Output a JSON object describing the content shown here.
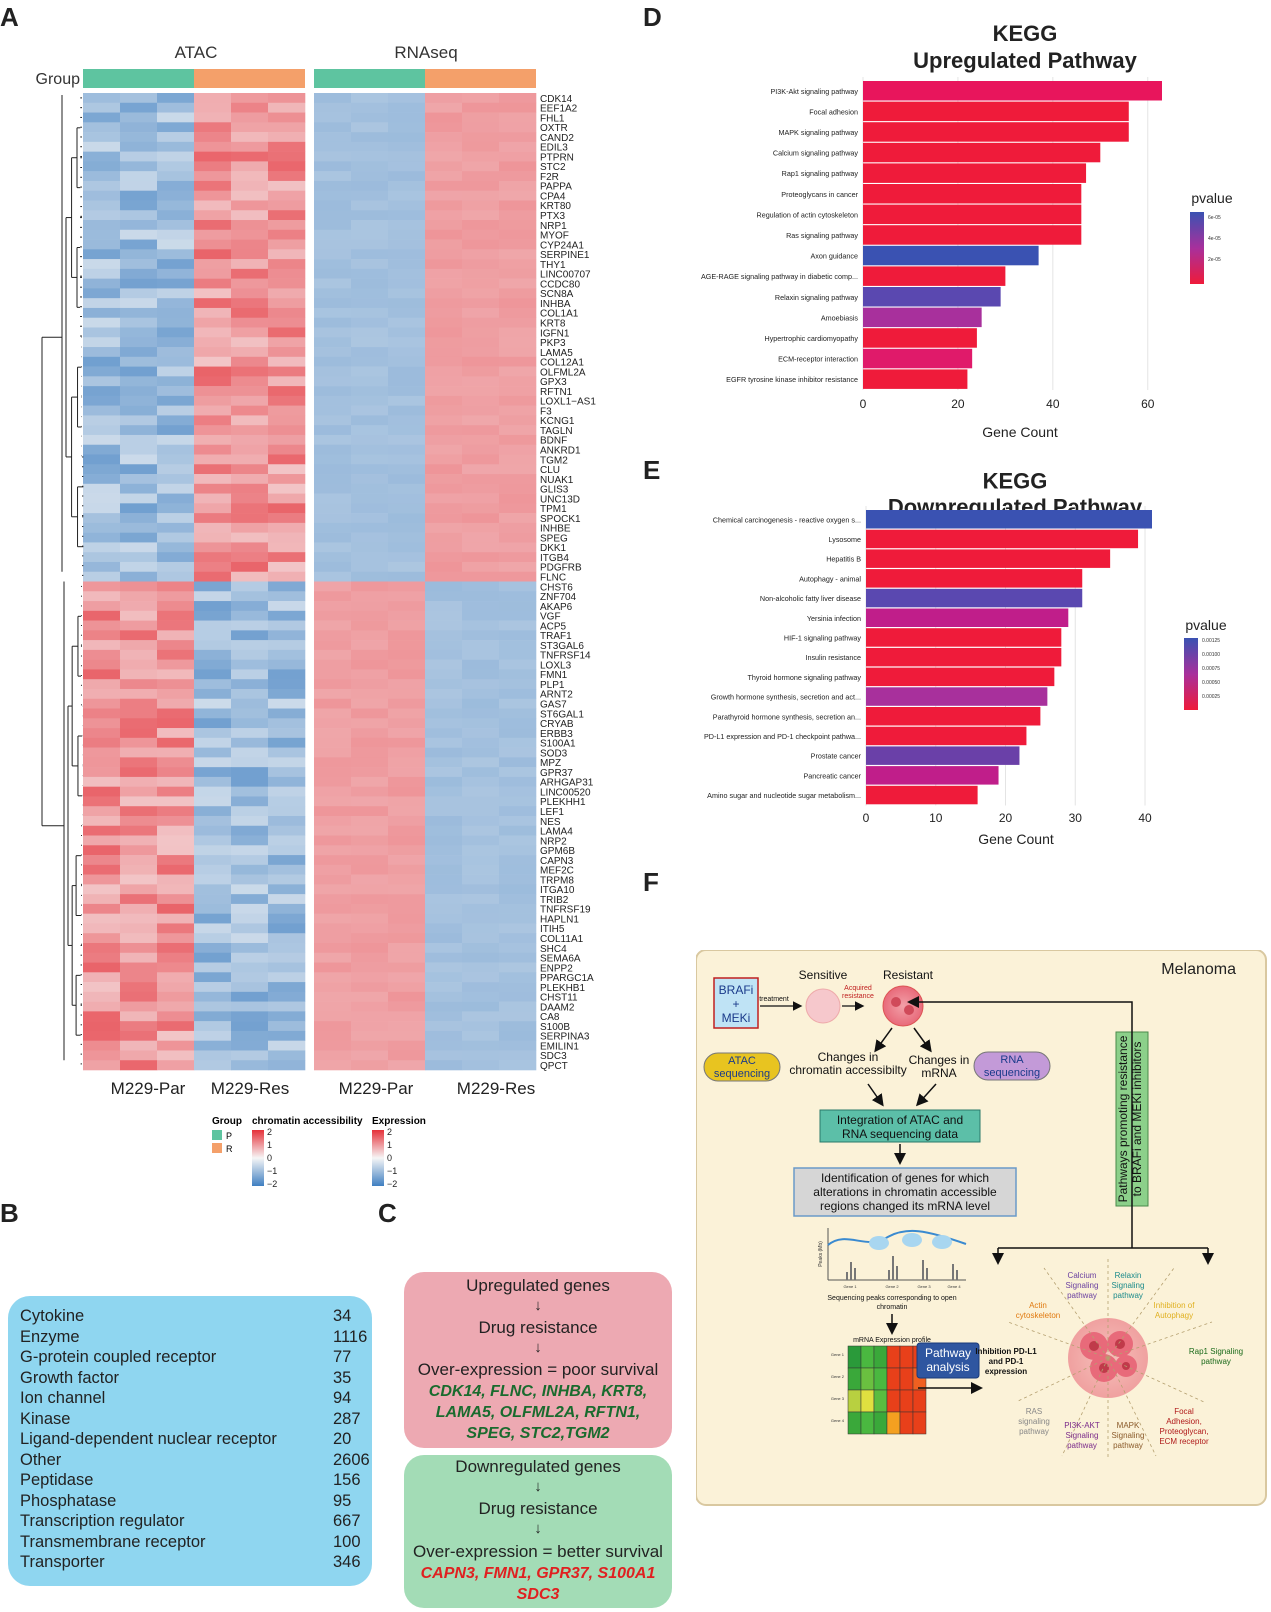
{
  "panels": {
    "a": "A",
    "b": "B",
    "c": "C",
    "d": "D",
    "e": "E",
    "f": "F"
  },
  "heatmap": {
    "atac_title": "ATAC",
    "rna_title": "RNAseq",
    "group_label": "Group",
    "x_labels": [
      "M229-Par",
      "M229-Res",
      "M229-Par",
      "M229-Res"
    ],
    "genes": [
      "CDK14",
      "EEF1A2",
      "FHL1",
      "OXTR",
      "CAND2",
      "EDIL3",
      "PTPRN",
      "STC2",
      "F2R",
      "PAPPA",
      "CPA4",
      "KRT80",
      "PTX3",
      "NRP1",
      "MYOF",
      "CYP24A1",
      "SERPINE1",
      "THY1",
      "LINC00707",
      "CCDC80",
      "SCN8A",
      "INHBA",
      "COL1A1",
      "KRT8",
      "IGFN1",
      "PKP3",
      "LAMA5",
      "COL12A1",
      "OLFML2A",
      "GPX3",
      "RFTN1",
      "LOXL1−AS1",
      "F3",
      "KCNG1",
      "TAGLN",
      "BDNF",
      "ANKRD1",
      "TGM2",
      "CLU",
      "NUAK1",
      "GLIS3",
      "UNC13D",
      "TPM1",
      "SPOCK1",
      "INHBE",
      "SPEG",
      "DKK1",
      "ITGB4",
      "PDGFRB",
      "FLNC",
      "CHST6",
      "ZNF704",
      "AKAP6",
      "VGF",
      "ACP5",
      "TRAF1",
      "ST3GAL6",
      "TNFRSF14",
      "LOXL3",
      "FMN1",
      "PLP1",
      "ARNT2",
      "GAS7",
      "ST6GAL1",
      "CRYAB",
      "ERBB3",
      "S100A1",
      "SOD3",
      "MPZ",
      "GPR37",
      "ARHGAP31",
      "LINC00520",
      "PLEKHH1",
      "LEF1",
      "NES",
      "LAMA4",
      "NRP2",
      "GPM6B",
      "CAPN3",
      "MEF2C",
      "TRPM8",
      "ITGA10",
      "TRIB2",
      "TNFRSF19",
      "HAPLN1",
      "ITIH5",
      "COL11A1",
      "SHC4",
      "SEMA6A",
      "ENPP2",
      "PPARGC1A",
      "PLEKHB1",
      "CHST11",
      "DAAM2",
      "CA8",
      "S100B",
      "SERPINA3",
      "EMILIN1",
      "SDC3",
      "QPCT"
    ],
    "legend": {
      "group_title": "Group",
      "group_items": [
        "P",
        "R"
      ],
      "atac_title": "chromatin accessibility",
      "rna_title": "Expression",
      "ticks": [
        "2",
        "1",
        "0",
        "−1",
        "−2"
      ]
    },
    "colors": {
      "group_p": "#5ec4a0",
      "group_r": "#f4a06a",
      "high": "#e5323a",
      "mid": "#f6f6f6",
      "low": "#3f7fc1"
    }
  },
  "kegg_up": {
    "title_line1": "KEGG",
    "title_line2": "Upregulated Pathway",
    "xlabel": "Gene Count",
    "legend_title": "pvalue",
    "legend_ticks": [
      "6e-05",
      "4e-05",
      "2e-05"
    ]
  },
  "kegg_down": {
    "title_line1": "KEGG",
    "title_line2": "Downregulated Pathway",
    "xlabel": "Gene Count",
    "legend_title": "pvalue",
    "legend_ticks": [
      "0.00125",
      "0.00100",
      "0.00075",
      "0.00050",
      "0.00025"
    ]
  },
  "chart_data": [
    {
      "type": "bar",
      "title": "KEGG Upregulated Pathway",
      "xlabel": "Gene Count",
      "ylabel": "",
      "xlim": [
        0,
        63
      ],
      "ticks": [
        0,
        20,
        40,
        60
      ],
      "categories": [
        "PI3K-Akt signaling pathway",
        "Focal adhesion",
        "MAPK signaling pathway",
        "Calcium signaling pathway",
        "Rap1 signaling pathway",
        "Proteoglycans in cancer",
        "Regulation of actin cytoskeleton",
        "Ras signaling pathway",
        "Axon guidance",
        "AGE-RAGE signaling pathway in diabetic comp...",
        "Relaxin signaling pathway",
        "Amoebiasis",
        "Hypertrophic cardiomyopathy",
        "ECM-receptor interaction",
        "EGFR tyrosine kinase inhibitor resistance"
      ],
      "values": [
        63,
        56,
        56,
        50,
        47,
        46,
        46,
        46,
        37,
        30,
        29,
        25,
        24,
        23,
        22
      ],
      "colors": [
        "#e8155c",
        "#ef1b3a",
        "#ef1b3a",
        "#ef1b3a",
        "#ef1b3a",
        "#ef1b3a",
        "#ef1b3a",
        "#ef1b3a",
        "#3a52b2",
        "#ef1b3a",
        "#5a48b0",
        "#a8309c",
        "#ef1b3a",
        "#e01a6a",
        "#ef1b3a"
      ]
    },
    {
      "type": "bar",
      "title": "KEGG Downregulated Pathway",
      "xlabel": "Gene Count",
      "ylabel": "",
      "xlim": [
        0,
        41
      ],
      "ticks": [
        0,
        10,
        20,
        30,
        40
      ],
      "categories": [
        "Chemical carcinogenesis - reactive oxygen s...",
        "Lysosome",
        "Hepatitis B",
        "Autophagy - animal",
        "Non-alcoholic fatty liver disease",
        "Yersinia infection",
        "HIF-1 signaling pathway",
        "Insulin resistance",
        "Thyroid hormone signaling pathway",
        "Growth hormone synthesis, secretion and act...",
        "Parathyroid hormone synthesis, secretion an...",
        "PD-L1 expression and PD-1 checkpoint pathwa...",
        "Prostate cancer",
        "Pancreatic cancer",
        "Amino sugar and nucleotide sugar metabolism..."
      ],
      "values": [
        41,
        39,
        35,
        31,
        31,
        29,
        28,
        28,
        27,
        26,
        25,
        23,
        22,
        19,
        16
      ],
      "colors": [
        "#3a52b2",
        "#ef1b3a",
        "#ef1b3a",
        "#ef1b3a",
        "#5a48b0",
        "#c01e8a",
        "#ef1b3a",
        "#ef1b3a",
        "#ef1b3a",
        "#a8309c",
        "#ef1b3a",
        "#ef1b3a",
        "#6a40a8",
        "#c01e8a",
        "#ef1b3a"
      ]
    }
  ],
  "gene_classes": [
    {
      "label": "Cytokine",
      "count": "34"
    },
    {
      "label": "Enzyme",
      "count": "1116"
    },
    {
      "label": "G-protein coupled receptor",
      "count": "77"
    },
    {
      "label": "Growth factor",
      "count": "35"
    },
    {
      "label": "Ion channel",
      "count": "94"
    },
    {
      "label": "Kinase",
      "count": "287"
    },
    {
      "label": "Ligand-dependent nuclear receptor",
      "count": "20"
    },
    {
      "label": "Other",
      "count": "2606"
    },
    {
      "label": "Peptidase",
      "count": "156"
    },
    {
      "label": "Phosphatase",
      "count": "95"
    },
    {
      "label": "Transcription regulator",
      "count": "667"
    },
    {
      "label": "Transmembrane receptor",
      "count": "100"
    },
    {
      "label": "Transporter",
      "count": "346"
    }
  ],
  "panel_c": {
    "up": {
      "title": "Upregulated genes",
      "step": "Drug resistance",
      "outcome": "Over-expression = poor survival",
      "genes_l1": "CDK14, FLNC, INHBA, KRT8,",
      "genes_l2": "LAMA5, OLFML2A, RFTN1,",
      "genes_l3": "SPEG, STC2,TGM2"
    },
    "down": {
      "title": "Downregulated genes",
      "step": "Drug resistance",
      "outcome": "Over-expression = better survival",
      "genes_l1": "CAPN3, FMN1, GPR37, S100A1",
      "genes_l2": "SDC3"
    }
  },
  "panel_f": {
    "melanoma": "Melanoma",
    "brafi_l1": "BRAFi",
    "brafi_l2": "+",
    "brafi_l3": "MEKi",
    "treatment": "treatment",
    "sensitive": "Sensitive",
    "resistant": "Resistant",
    "acquired_l1": "Acquired",
    "acquired_l2": "resistance",
    "atac_l1": "ATAC",
    "atac_l2": "sequencing",
    "rna_l1": "RNA",
    "rna_l2": "sequencing",
    "changes_chrom_l1": "Changes in",
    "changes_chrom_l2": "chromatin accessibilty",
    "changes_mrna_l1": "Changes in",
    "changes_mrna_l2": "mRNA",
    "integration_l1": "Integration of ATAC and",
    "integration_l2": "RNA sequencing data",
    "ident_l1": "Identification of genes for which",
    "ident_l2": "alterations in chromatin accessible",
    "ident_l3": "regions changed its mRNA level",
    "peaks_axis": "Peaks (Mb)",
    "peaks_caption_l1": "Sequencing peaks corresponding to open",
    "peaks_caption_l2": "chromatin",
    "gene_ticks": [
      "Gene 1",
      "Gene 2",
      "Gene 3",
      "Gene 4"
    ],
    "mrna_title": "mRNA Expression profile",
    "mrna_rows": [
      "Gene 1",
      "Gene 2",
      "Gene 3",
      "Gene 4"
    ],
    "pathway_l1": "Pathway",
    "pathway_l2": "analysis",
    "side_l1": "Pathways promoting resistance",
    "side_l2": "to BRAFi and MEKi inhibitors",
    "pathways": [
      {
        "l1": "Calcium",
        "l2": "Signaling",
        "l3": "pathway",
        "color": "#6a3fa0"
      },
      {
        "l1": "Relaxin",
        "l2": "Signaling",
        "l3": "pathway",
        "color": "#1a8a8a"
      },
      {
        "l1": "Actin",
        "l2": "cytoskeleton",
        "l3": "",
        "color": "#e07a10"
      },
      {
        "l1": "Inhibition of",
        "l2": "Autophagy",
        "l3": "",
        "color": "#e0b020"
      },
      {
        "l1": "Inhibition PD-L1",
        "l2": "and PD-1",
        "l3": "expression",
        "color": "#111111"
      },
      {
        "l1": "Rap1 Signaling",
        "l2": "pathway",
        "l3": "",
        "color": "#1a6a1a"
      },
      {
        "l1": "RAS",
        "l2": "signaling",
        "l3": "pathway",
        "color": "#888888"
      },
      {
        "l1": "PI3K-AKT",
        "l2": "Signaling",
        "l3": "pathway",
        "color": "#7a2a8a"
      },
      {
        "l1": "MAPK",
        "l2": "Signaling",
        "l3": "pathway",
        "color": "#8a5a2a"
      },
      {
        "l1": "Focal",
        "l2": "Adhesion,",
        "l3": "Proteoglycan,",
        "l4": "ECM receptor",
        "color": "#b01a1a"
      }
    ]
  }
}
